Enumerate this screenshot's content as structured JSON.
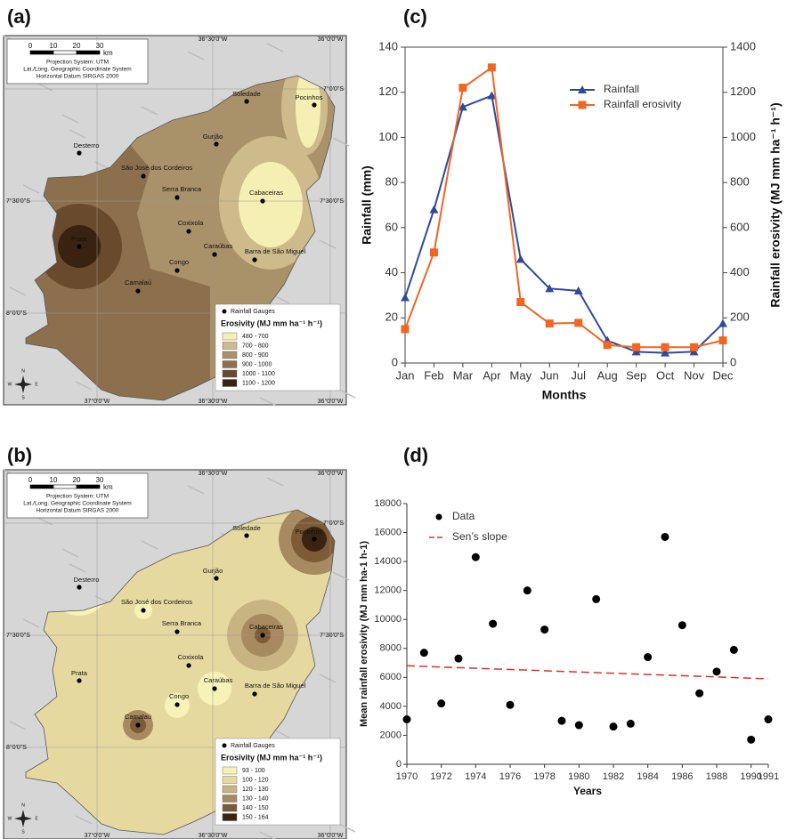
{
  "panel_labels": [
    "(a)",
    "(b)",
    "(c)",
    "(d)"
  ],
  "maps": [
    {
      "scale": {
        "ticks": [
          0,
          10,
          20,
          30
        ],
        "unit": "km"
      },
      "projection": [
        "Projection System: UTM",
        "Lat./Long. Geographic Coordinate System",
        "Horizontal Datum SIRGAS 2000"
      ],
      "coords": {
        "top": [
          "36°30'0\"W",
          "36°0'0\"W"
        ],
        "bottom": [
          "37°0'0\"W",
          "36°30'0\"W",
          "36°0'0\"W"
        ],
        "left": [
          "7°30'0\"S",
          "8°0'0\"S"
        ],
        "right": [
          "7°0'0\"S",
          "7°30'0\"S"
        ]
      },
      "places": [
        "Soledade",
        "Pocinhos",
        "Gurjão",
        "Desterro",
        "São José dos Cordeiros",
        "Serra Branca",
        "Cabaceiras",
        "Coxixola",
        "Prata",
        "Caraúbas",
        "Barra de São Miguel",
        "Congo",
        "Camalaú"
      ],
      "compass": [
        "N",
        "E",
        "S",
        "W"
      ],
      "legend": {
        "gauges": "Rainfall Gauges",
        "title": "Erosivity (MJ mm ha⁻¹ h⁻¹)",
        "classes": [
          "480 - 700",
          "700 - 800",
          "800 - 900",
          "900 - 1000",
          "1000 - 1100",
          "1100 - 1200"
        ],
        "colors": [
          "#f6efb4",
          "#cdbb8c",
          "#a99169",
          "#8c704d",
          "#6a4a2d",
          "#3a2210"
        ]
      }
    },
    {
      "scale": {
        "ticks": [
          0,
          10,
          20,
          30
        ],
        "unit": "km"
      },
      "projection": [
        "Projection System: UTM",
        "Lat./Long. Geographic Coordinate System",
        "Horizontal Datum SIRGAS 2000"
      ],
      "coords": {
        "top": [
          "36°30'0\"W",
          "36°0'0\"W"
        ],
        "bottom": [
          "37°0'0\"W",
          "36°30'0\"W",
          "36°0'0\"W"
        ],
        "left": [
          "7°30'0\"S",
          "8°0'0\"S"
        ],
        "right": [
          "7°0'0\"S",
          "7°30'0\"S"
        ]
      },
      "places": [
        "Soledade",
        "Pocinhos",
        "Gurjão",
        "Desterro",
        "São José dos Cordeiros",
        "Serra Branca",
        "Cabaceiras",
        "Coxixola",
        "Prata",
        "Caraúbas",
        "Barra de São Miguel",
        "Congo",
        "Camalaú"
      ],
      "compass": [
        "N",
        "E",
        "S",
        "W"
      ],
      "legend": {
        "gauges": "Rainfall Gauges",
        "title": "Erosivity (MJ mm ha⁻¹ h⁻¹)",
        "classes": [
          "93 - 100",
          "100 - 120",
          "120 - 130",
          "130 - 140",
          "140 - 150",
          "150 - 164"
        ],
        "colors": [
          "#f8f2b8",
          "#e6d9a0",
          "#c8b483",
          "#a88a60",
          "#7d5b37",
          "#3a2410"
        ]
      }
    }
  ],
  "chart_data": [
    {
      "type": "line",
      "categories": [
        "Jan",
        "Feb",
        "Mar",
        "Apr",
        "May",
        "Jun",
        "Jul",
        "Aug",
        "Sep",
        "Oct",
        "Nov",
        "Dec"
      ],
      "series": [
        {
          "name": "Rainfall",
          "color": "#2e4a9e",
          "marker": "triangle",
          "values": [
            29,
            68,
            113.5,
            118.5,
            46,
            33,
            32,
            10,
            5,
            4.5,
            5,
            17.5
          ]
        },
        {
          "name": "Rainfall erosivity",
          "color": "#f26522",
          "marker": "square",
          "axis": "y2",
          "values": [
            150,
            490,
            1220,
            1310,
            270,
            175,
            178,
            80,
            70,
            70,
            70,
            100
          ]
        }
      ],
      "ylim": [
        0,
        140
      ],
      "yticks": [
        0,
        20,
        40,
        60,
        80,
        100,
        120,
        140
      ],
      "y2lim": [
        0,
        1400
      ],
      "y2ticks": [
        0,
        200,
        400,
        600,
        800,
        1000,
        1200,
        1400
      ],
      "x_label": "Months",
      "y_label": "Rainfall (mm)",
      "y2_label": "Rainfall erosivity (MJ mm ha⁻¹ h⁻¹)"
    },
    {
      "type": "scatter",
      "series": [
        {
          "name": "Data",
          "color": "#000000",
          "style": "dots",
          "x": [
            1970,
            1971,
            1972,
            1973,
            1974,
            1975,
            1976,
            1977,
            1978,
            1979,
            1980,
            1981,
            1982,
            1983,
            1984,
            1985,
            1986,
            1987,
            1988,
            1989,
            1990,
            1991
          ],
          "values": [
            3100,
            7700,
            4200,
            7300,
            14300,
            9700,
            4100,
            12000,
            9300,
            3000,
            2700,
            11400,
            2600,
            2800,
            7400,
            15700,
            9600,
            4900,
            6400,
            7900,
            1700,
            3100
          ]
        },
        {
          "name": "Sen’s slope",
          "color": "#e03020",
          "style": "dashed",
          "x": [
            1970,
            1991
          ],
          "values": [
            6800,
            5900
          ]
        }
      ],
      "xlim": [
        1970,
        1991
      ],
      "xticks": [
        1970,
        1972,
        1974,
        1976,
        1978,
        1980,
        1982,
        1984,
        1986,
        1988,
        1990,
        1991
      ],
      "ylim": [
        0,
        18000
      ],
      "yticks": [
        0,
        2000,
        4000,
        6000,
        8000,
        10000,
        12000,
        14000,
        16000,
        18000
      ],
      "x_label": "Years",
      "y_label": "Mean rainfall erosivity (MJ mm ha-1 h-1)"
    }
  ]
}
